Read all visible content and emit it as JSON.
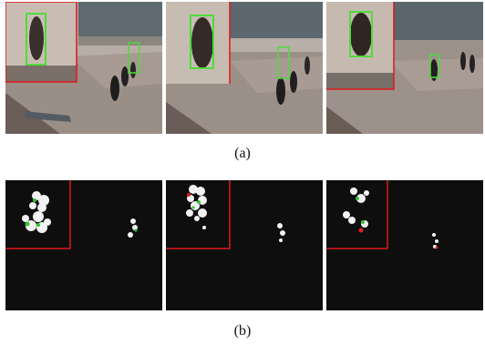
{
  "figure": {
    "caption_a": "(a)",
    "caption_b": "(b)"
  },
  "colors": {
    "tracking_box": "#4fdc3a",
    "zoom_inset_border": "#e0161a",
    "mask_background": "#0e0e0e",
    "mask_foreground": "#f2f2f2",
    "mask_feature_green": "#2ec82e",
    "mask_feature_red": "#e02020"
  },
  "row_a": {
    "panels": [
      {
        "name": "frame-1",
        "content": "surveillance-frame",
        "has_zoom_inset": true,
        "tracked_boxes": 2
      },
      {
        "name": "frame-2",
        "content": "surveillance-frame",
        "has_zoom_inset": true,
        "tracked_boxes": 2
      },
      {
        "name": "frame-3",
        "content": "surveillance-frame",
        "has_zoom_inset": true,
        "tracked_boxes": 2
      }
    ]
  },
  "row_b": {
    "panels": [
      {
        "name": "mask-1",
        "content": "foreground-mask",
        "has_zoom_inset": true
      },
      {
        "name": "mask-2",
        "content": "foreground-mask",
        "has_zoom_inset": true
      },
      {
        "name": "mask-3",
        "content": "foreground-mask",
        "has_zoom_inset": true
      }
    ]
  }
}
